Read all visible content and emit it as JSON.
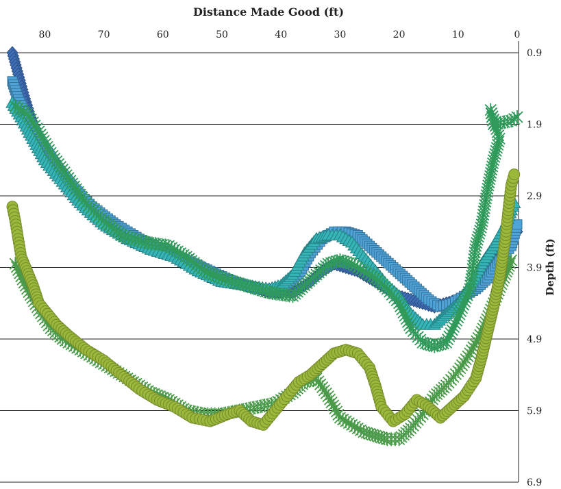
{
  "chart_data": {
    "type": "scatter",
    "xlabel": "Distance Made Good (ft)",
    "ylabel": "Depth (ft)",
    "x_axis_position": "top",
    "x_reversed": true,
    "xlim": [
      -1,
      86
    ],
    "ylim": [
      0.9,
      6.9
    ],
    "y_inverted": true,
    "y_axis_position": "right",
    "xticks": [
      80,
      70,
      60,
      50,
      40,
      30,
      20,
      10,
      0
    ],
    "yticks": [
      0.9,
      1.9,
      2.9,
      3.9,
      4.9,
      5.9,
      6.9
    ],
    "grid": "horizontal",
    "legend": "none",
    "series": [
      {
        "marker": "diamond",
        "color": "#3f6fb8",
        "points": [
          [
            85.5,
            0.9
          ],
          [
            84.5,
            1.2
          ],
          [
            83.5,
            1.5
          ],
          [
            82,
            1.9
          ],
          [
            80,
            2.3
          ],
          [
            77,
            2.7
          ],
          [
            74,
            3.0
          ],
          [
            70,
            3.3
          ],
          [
            66,
            3.5
          ],
          [
            62,
            3.6
          ],
          [
            58,
            3.75
          ],
          [
            55,
            3.9
          ],
          [
            50,
            4.05
          ],
          [
            46,
            4.15
          ],
          [
            42,
            4.25
          ],
          [
            38,
            4.25
          ],
          [
            35,
            4.1
          ],
          [
            33,
            3.95
          ],
          [
            31,
            3.85
          ],
          [
            29,
            3.9
          ],
          [
            27,
            3.95
          ],
          [
            25,
            4.05
          ],
          [
            22,
            4.2
          ],
          [
            20,
            4.3
          ],
          [
            18,
            4.35
          ],
          [
            16,
            4.4
          ],
          [
            14,
            4.45
          ],
          [
            12,
            4.4
          ],
          [
            10,
            4.35
          ],
          [
            8,
            4.25
          ],
          [
            6,
            4.05
          ],
          [
            4,
            3.8
          ],
          [
            2,
            3.5
          ],
          [
            1,
            3.3
          ],
          [
            0,
            3.4
          ]
        ]
      },
      {
        "marker": "square",
        "color": "#4ea3d8",
        "points": [
          [
            85.5,
            1.3
          ],
          [
            84.5,
            1.55
          ],
          [
            83,
            1.8
          ],
          [
            81,
            2.1
          ],
          [
            78,
            2.5
          ],
          [
            75,
            2.8
          ],
          [
            72,
            3.05
          ],
          [
            68,
            3.3
          ],
          [
            64,
            3.5
          ],
          [
            60,
            3.65
          ],
          [
            56,
            3.8
          ],
          [
            52,
            3.95
          ],
          [
            48,
            4.1
          ],
          [
            44,
            4.2
          ],
          [
            40,
            4.2
          ],
          [
            37,
            4.0
          ],
          [
            35,
            3.7
          ],
          [
            33,
            3.5
          ],
          [
            31,
            3.4
          ],
          [
            29,
            3.4
          ],
          [
            27,
            3.45
          ],
          [
            25,
            3.6
          ],
          [
            23,
            3.75
          ],
          [
            21,
            3.9
          ],
          [
            19,
            4.05
          ],
          [
            17,
            4.2
          ],
          [
            15,
            4.35
          ],
          [
            13,
            4.45
          ],
          [
            11,
            4.4
          ],
          [
            9,
            4.3
          ],
          [
            7,
            4.2
          ],
          [
            5,
            4.05
          ],
          [
            3,
            3.8
          ],
          [
            1,
            3.6
          ],
          [
            0,
            3.3
          ]
        ]
      },
      {
        "marker": "triangle",
        "color": "#35b5b8",
        "points": [
          [
            85.5,
            1.6
          ],
          [
            84,
            1.8
          ],
          [
            82,
            2.1
          ],
          [
            80,
            2.4
          ],
          [
            77,
            2.7
          ],
          [
            74,
            3.0
          ],
          [
            70,
            3.3
          ],
          [
            66,
            3.5
          ],
          [
            62,
            3.65
          ],
          [
            58,
            3.75
          ],
          [
            54,
            3.95
          ],
          [
            50,
            4.1
          ],
          [
            46,
            4.15
          ],
          [
            42,
            4.2
          ],
          [
            40,
            4.15
          ],
          [
            38,
            4.0
          ],
          [
            36,
            3.7
          ],
          [
            34,
            3.5
          ],
          [
            32,
            3.45
          ],
          [
            30,
            3.45
          ],
          [
            28,
            3.55
          ],
          [
            26,
            3.75
          ],
          [
            24,
            3.95
          ],
          [
            22,
            4.15
          ],
          [
            20,
            4.3
          ],
          [
            18,
            4.55
          ],
          [
            16,
            4.7
          ],
          [
            14,
            4.7
          ],
          [
            12,
            4.55
          ],
          [
            10,
            4.4
          ],
          [
            8,
            4.15
          ],
          [
            6,
            3.85
          ],
          [
            4,
            3.6
          ],
          [
            2,
            3.3
          ],
          [
            1,
            3.1
          ],
          [
            0.5,
            3.0
          ]
        ]
      },
      {
        "marker": "asterisk",
        "color": "#2f9a5a",
        "points": [
          [
            85,
            1.65
          ],
          [
            83,
            1.75
          ],
          [
            81,
            2.0
          ],
          [
            79,
            2.3
          ],
          [
            76,
            2.65
          ],
          [
            73,
            3.0
          ],
          [
            70,
            3.25
          ],
          [
            67,
            3.45
          ],
          [
            63,
            3.55
          ],
          [
            59,
            3.6
          ],
          [
            56,
            3.75
          ],
          [
            53,
            3.95
          ],
          [
            50,
            4.05
          ],
          [
            46,
            4.15
          ],
          [
            42,
            4.25
          ],
          [
            38,
            4.3
          ],
          [
            36,
            4.15
          ],
          [
            34,
            4.0
          ],
          [
            32,
            3.85
          ],
          [
            30,
            3.8
          ],
          [
            28,
            3.85
          ],
          [
            26,
            3.95
          ],
          [
            24,
            4.05
          ],
          [
            22,
            4.2
          ],
          [
            20,
            4.4
          ],
          [
            18,
            4.75
          ],
          [
            16,
            4.95
          ],
          [
            14,
            5.0
          ],
          [
            12,
            4.95
          ],
          [
            10,
            4.6
          ],
          [
            8,
            4.2
          ],
          [
            7,
            3.6
          ],
          [
            6,
            3.3
          ],
          [
            5,
            2.8
          ],
          [
            4,
            2.4
          ],
          [
            3,
            2.1
          ],
          [
            4.5,
            1.7
          ],
          [
            4,
            1.9
          ],
          [
            1,
            1.85
          ],
          [
            0,
            1.8
          ]
        ]
      },
      {
        "marker": "asterisk",
        "color": "#4a9a4a",
        "points": [
          [
            85,
            3.85
          ],
          [
            83,
            4.2
          ],
          [
            81,
            4.5
          ],
          [
            79,
            4.75
          ],
          [
            77,
            4.9
          ],
          [
            74,
            5.05
          ],
          [
            71,
            5.2
          ],
          [
            68,
            5.35
          ],
          [
            65,
            5.5
          ],
          [
            62,
            5.65
          ],
          [
            59,
            5.75
          ],
          [
            56,
            5.9
          ],
          [
            53,
            5.95
          ],
          [
            50,
            5.95
          ],
          [
            47,
            5.9
          ],
          [
            44,
            5.85
          ],
          [
            41,
            5.8
          ],
          [
            38,
            5.65
          ],
          [
            36,
            5.5
          ],
          [
            34,
            5.45
          ],
          [
            32,
            5.7
          ],
          [
            30,
            6.0
          ],
          [
            28,
            6.1
          ],
          [
            26,
            6.2
          ],
          [
            24,
            6.25
          ],
          [
            22,
            6.3
          ],
          [
            20,
            6.3
          ],
          [
            18,
            6.15
          ],
          [
            16,
            5.95
          ],
          [
            14,
            5.7
          ],
          [
            12,
            5.55
          ],
          [
            10,
            5.35
          ],
          [
            8,
            5.1
          ],
          [
            6,
            4.8
          ],
          [
            4,
            4.4
          ],
          [
            2,
            4.0
          ],
          [
            1,
            3.8
          ]
        ]
      },
      {
        "marker": "circle",
        "color": "#9ab83a",
        "points": [
          [
            85.5,
            3.05
          ],
          [
            85,
            3.25
          ],
          [
            84.5,
            3.5
          ],
          [
            84,
            3.75
          ],
          [
            83,
            3.95
          ],
          [
            82,
            4.15
          ],
          [
            81,
            4.4
          ],
          [
            79.5,
            4.55
          ],
          [
            78,
            4.7
          ],
          [
            76,
            4.85
          ],
          [
            73,
            5.05
          ],
          [
            70,
            5.2
          ],
          [
            67,
            5.4
          ],
          [
            64,
            5.6
          ],
          [
            61,
            5.75
          ],
          [
            58,
            5.85
          ],
          [
            55,
            6.0
          ],
          [
            52,
            6.05
          ],
          [
            49,
            5.95
          ],
          [
            47,
            5.9
          ],
          [
            45,
            6.05
          ],
          [
            43,
            6.1
          ],
          [
            41,
            5.9
          ],
          [
            39,
            5.7
          ],
          [
            37,
            5.5
          ],
          [
            35,
            5.4
          ],
          [
            33,
            5.25
          ],
          [
            31,
            5.1
          ],
          [
            29,
            5.05
          ],
          [
            27,
            5.1
          ],
          [
            25,
            5.3
          ],
          [
            24,
            5.55
          ],
          [
            23,
            5.85
          ],
          [
            21,
            6.05
          ],
          [
            19,
            5.95
          ],
          [
            17,
            5.75
          ],
          [
            15,
            5.85
          ],
          [
            13,
            6.0
          ],
          [
            11,
            5.85
          ],
          [
            9,
            5.7
          ],
          [
            7,
            5.45
          ],
          [
            6,
            5.15
          ],
          [
            5,
            4.8
          ],
          [
            4,
            4.45
          ],
          [
            3,
            4.05
          ],
          [
            2,
            3.5
          ],
          [
            1.5,
            3.1
          ],
          [
            1,
            2.75
          ],
          [
            0.5,
            2.6
          ]
        ]
      }
    ]
  }
}
